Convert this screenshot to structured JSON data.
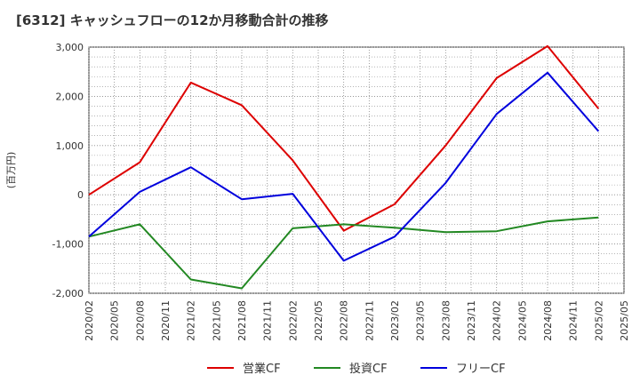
{
  "chart_data": {
    "type": "line",
    "title": "[6312]  キャッシュフローの12か月移動合計の推移",
    "ylabel": "(百万円)",
    "xlabel": "",
    "ylim": [
      -2000,
      3000
    ],
    "yticks": [
      3000,
      2000,
      1000,
      0,
      -1000,
      -2000
    ],
    "ytick_labels": [
      "3,000",
      "2,000",
      "1,000",
      "0",
      "-1,000",
      "-2,000"
    ],
    "categories": [
      "2020/02",
      "2020/05",
      "2020/08",
      "2020/11",
      "2021/02",
      "2021/05",
      "2021/08",
      "2021/11",
      "2022/02",
      "2022/05",
      "2022/08",
      "2022/11",
      "2023/02",
      "2023/05",
      "2023/08",
      "2023/11",
      "2024/02",
      "2024/05",
      "2024/08",
      "2024/11",
      "2025/02",
      "2025/05"
    ],
    "series": [
      {
        "name": "営業CF",
        "color": "#dd0000",
        "values": [
          0,
          null,
          660,
          null,
          2280,
          null,
          1820,
          null,
          700,
          null,
          -730,
          null,
          -190,
          null,
          1000,
          null,
          2370,
          null,
          3020,
          null,
          1750,
          null
        ]
      },
      {
        "name": "投資CF",
        "color": "#228822",
        "values": [
          -850,
          null,
          -600,
          null,
          -1720,
          null,
          -1900,
          null,
          -680,
          null,
          -600,
          null,
          -670,
          null,
          -760,
          null,
          -740,
          null,
          -540,
          null,
          -460,
          null
        ]
      },
      {
        "name": "フリーCF",
        "color": "#0000dd",
        "values": [
          -850,
          null,
          60,
          null,
          560,
          null,
          -90,
          null,
          20,
          null,
          -1340,
          null,
          -850,
          null,
          240,
          null,
          1640,
          null,
          2480,
          null,
          1290,
          null
        ]
      }
    ],
    "grid": true,
    "legend_position": "bottom-center"
  }
}
